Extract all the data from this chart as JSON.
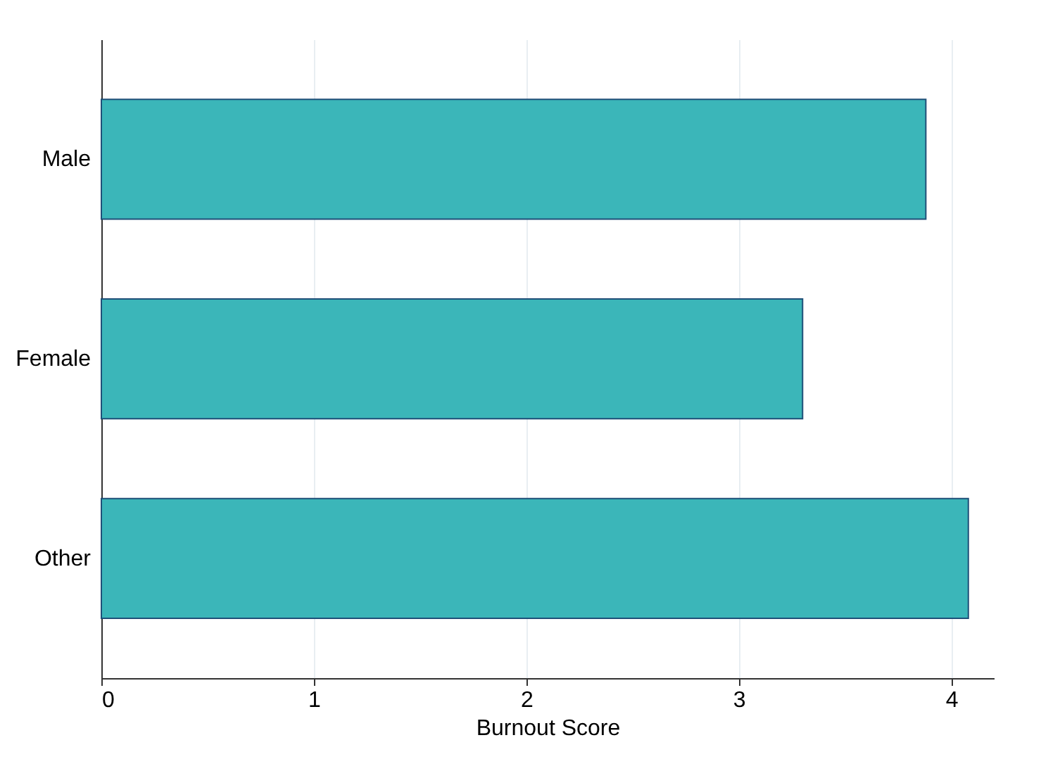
{
  "chart_data": {
    "type": "bar",
    "orientation": "horizontal",
    "xlabel": "Burnout Score",
    "categories": [
      "Male",
      "Female",
      "Other"
    ],
    "values": [
      3.88,
      3.3,
      4.08
    ],
    "color": "#3bb6b9",
    "xlim": [
      0,
      4.2
    ],
    "xticks": [
      0,
      1,
      2,
      3,
      4
    ],
    "grid": "x"
  }
}
